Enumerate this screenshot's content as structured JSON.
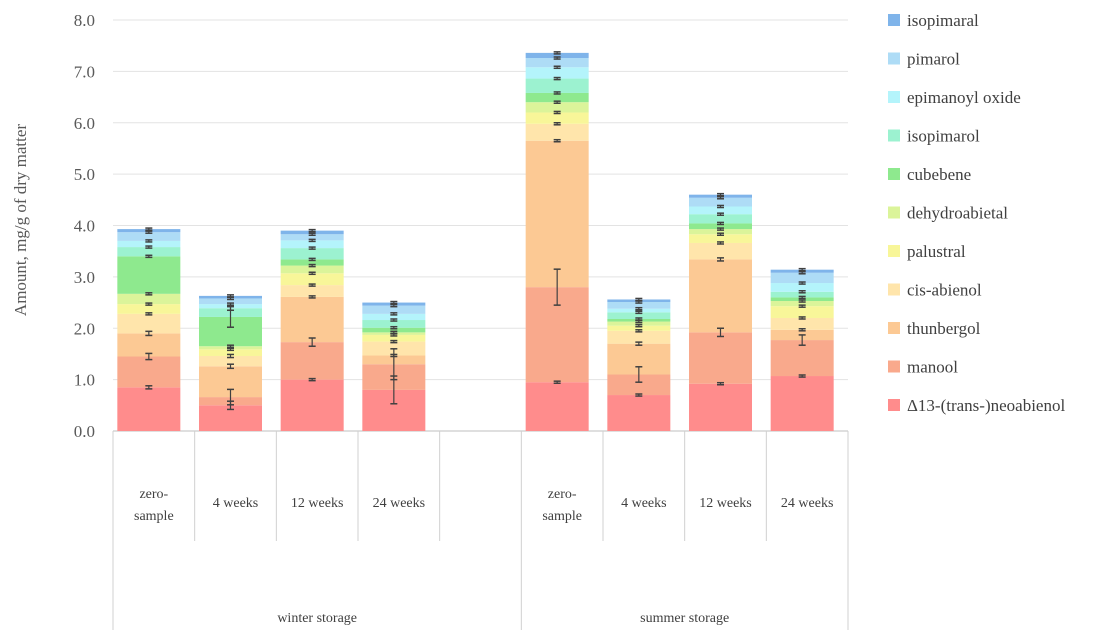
{
  "chart_data": {
    "type": "bar",
    "stacked": true,
    "ylabel": "Amount, mg/g of dry matter",
    "ylim": [
      0,
      8
    ],
    "yticks": [
      "0.0",
      "1.0",
      "2.0",
      "3.0",
      "4.0",
      "5.0",
      "6.0",
      "7.0",
      "8.0"
    ],
    "grid": true,
    "legend_position": "right",
    "groups": [
      {
        "label": "winter storage",
        "categories": [
          [
            "zero-",
            "sample"
          ],
          [
            "4 weeks"
          ],
          [
            "12 weeks"
          ],
          [
            "24 weeks"
          ]
        ]
      },
      {
        "label": "summer storage",
        "categories": [
          [
            "zero-",
            "sample"
          ],
          [
            "4 weeks"
          ],
          [
            "12 weeks"
          ],
          [
            "24 weeks"
          ]
        ]
      }
    ],
    "series": [
      {
        "name": "Δ13-(trans-)neoabienol",
        "color": "#ff8c8c",
        "values": [
          0.85,
          0.5,
          1.0,
          0.8,
          0.95,
          0.7,
          0.92,
          1.07
        ],
        "errors": [
          0.03,
          0.08,
          0.02,
          0.27,
          0.02,
          0.02,
          0.02,
          0.02
        ]
      },
      {
        "name": "manool",
        "color": "#f9a98c",
        "values": [
          0.6,
          0.16,
          0.73,
          0.5,
          1.85,
          0.4,
          1.0,
          0.7
        ],
        "errors": [
          0.06,
          0.15,
          0.08,
          0.3,
          0.35,
          0.15,
          0.08,
          0.1
        ]
      },
      {
        "name": "thunbergol",
        "color": "#fcc994",
        "values": [
          0.45,
          0.6,
          0.88,
          0.17,
          2.85,
          0.6,
          1.42,
          0.2
        ],
        "errors": [
          0.04,
          0.04,
          0.02,
          0.02,
          0.02,
          0.03,
          0.03,
          0.02
        ]
      },
      {
        "name": "cis-abienol",
        "color": "#ffe5ab",
        "values": [
          0.38,
          0.2,
          0.23,
          0.27,
          0.33,
          0.25,
          0.32,
          0.23
        ],
        "errors": [
          0.02,
          0.03,
          0.02,
          0.02,
          0.02,
          0.02,
          0.02,
          0.02
        ]
      },
      {
        "name": "palustral",
        "color": "#f8f699",
        "values": [
          0.19,
          0.13,
          0.23,
          0.13,
          0.22,
          0.1,
          0.17,
          0.23
        ],
        "errors": [
          0.02,
          0.02,
          0.02,
          0.02,
          0.02,
          0.02,
          0.02,
          0.02
        ]
      },
      {
        "name": "dehydroabietal",
        "color": "#dbf49a",
        "values": [
          0.2,
          0.06,
          0.15,
          0.05,
          0.2,
          0.08,
          0.1,
          0.1
        ],
        "errors": [
          0.02,
          0.02,
          0.02,
          0.02,
          0.02,
          0.02,
          0.02,
          0.02
        ]
      },
      {
        "name": "cubebene",
        "color": "#8ee98e",
        "values": [
          0.73,
          0.57,
          0.12,
          0.09,
          0.18,
          0.05,
          0.11,
          0.07
        ],
        "errors": [
          0.02,
          0.2,
          0.02,
          0.02,
          0.02,
          0.02,
          0.02,
          0.02
        ]
      },
      {
        "name": "isopimarol",
        "color": "#9cf2d0",
        "values": [
          0.18,
          0.17,
          0.22,
          0.15,
          0.28,
          0.13,
          0.18,
          0.11
        ],
        "errors": [
          0.02,
          0.04,
          0.02,
          0.02,
          0.02,
          0.02,
          0.02,
          0.02
        ]
      },
      {
        "name": "epimanoyl oxide",
        "color": "#b4f4fb",
        "values": [
          0.12,
          0.08,
          0.15,
          0.12,
          0.22,
          0.07,
          0.15,
          0.17
        ],
        "errors": [
          0.02,
          0.02,
          0.02,
          0.02,
          0.02,
          0.02,
          0.02,
          0.02
        ]
      },
      {
        "name": "pimarol",
        "color": "#aedcf6",
        "values": [
          0.17,
          0.11,
          0.12,
          0.16,
          0.18,
          0.13,
          0.17,
          0.2
        ],
        "errors": [
          0.02,
          0.02,
          0.02,
          0.02,
          0.02,
          0.02,
          0.02,
          0.02
        ]
      },
      {
        "name": "isopimaral",
        "color": "#7fb4ea",
        "values": [
          0.06,
          0.05,
          0.07,
          0.06,
          0.1,
          0.05,
          0.06,
          0.06
        ],
        "errors": [
          0.02,
          0.02,
          0.02,
          0.02,
          0.02,
          0.02,
          0.02,
          0.02
        ]
      }
    ]
  }
}
